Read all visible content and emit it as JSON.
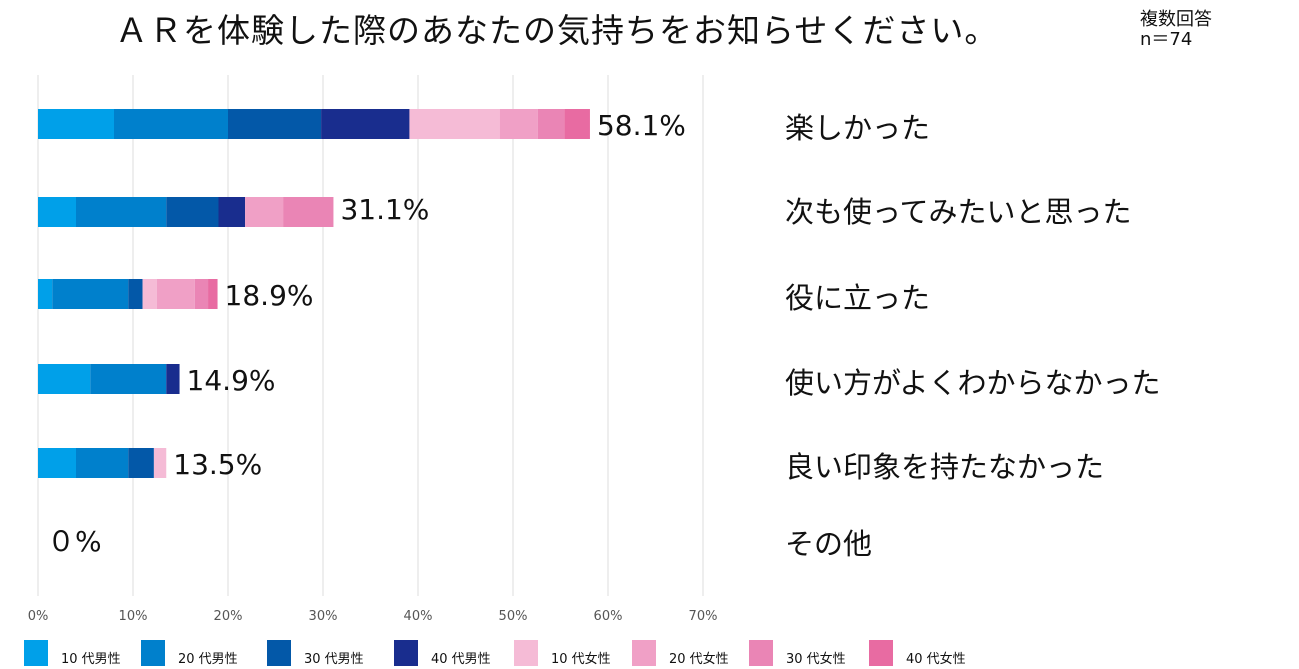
{
  "title": "ＡＲを体験した際のあなたの気持ちをお知らせください。",
  "note": {
    "line1": "複数回答",
    "line2": "n＝74"
  },
  "legend": [
    {
      "label": "10 代男性",
      "color": "#00A0E9"
    },
    {
      "label": "20 代男性",
      "color": "#0080CC"
    },
    {
      "label": "30 代男性",
      "color": "#0358A8"
    },
    {
      "label": "40 代男性",
      "color": "#192D8E"
    },
    {
      "label": "10 代女性",
      "color": "#F5BBD6"
    },
    {
      "label": "20 代女性",
      "color": "#F0A0C6"
    },
    {
      "label": "30 代女性",
      "color": "#EA85B5"
    },
    {
      "label": "40 代女性",
      "color": "#E86BA2"
    }
  ],
  "chart_data": {
    "type": "bar",
    "orientation": "horizontal",
    "stacked": true,
    "title": "ＡＲを体験した際のあなたの気持ちをお知らせください。",
    "xlim": [
      0,
      70
    ],
    "xticks": [
      "0%",
      "10%",
      "20%",
      "30%",
      "40%",
      "50%",
      "60%",
      "70%"
    ],
    "grid": true,
    "legend_position": "bottom",
    "categories": [
      "楽しかった",
      "次も使ってみたいと思った",
      "役に立った",
      "使い方がよくわからなかった",
      "良い印象を持たなかった",
      "その他"
    ],
    "totals": [
      "58.1%",
      "31.1%",
      "18.9%",
      "14.9%",
      "13.5%",
      "０%"
    ],
    "series": [
      {
        "name": "10 代男性",
        "color": "#00A0E9",
        "values": [
          8.0,
          4.0,
          1.5,
          5.5,
          4.0,
          0
        ]
      },
      {
        "name": "20 代男性",
        "color": "#0080CC",
        "values": [
          12.0,
          9.5,
          8.0,
          8.0,
          5.5,
          0
        ]
      },
      {
        "name": "30 代男性",
        "color": "#0358A8",
        "values": [
          9.8,
          5.5,
          1.5,
          0,
          2.7,
          0
        ]
      },
      {
        "name": "40 代男性",
        "color": "#192D8E",
        "values": [
          9.3,
          2.8,
          0,
          1.4,
          0,
          0
        ]
      },
      {
        "name": "10 代女性",
        "color": "#F5BBD6",
        "values": [
          9.5,
          0,
          1.5,
          0,
          1.3,
          0
        ]
      },
      {
        "name": "20 代女性",
        "color": "#F0A0C6",
        "values": [
          4.0,
          4.0,
          4.0,
          0,
          0,
          0
        ]
      },
      {
        "name": "30 代女性",
        "color": "#EA85B5",
        "values": [
          2.8,
          5.3,
          1.4,
          0,
          0,
          0
        ]
      },
      {
        "name": "40 代女性",
        "color": "#E86BA2",
        "values": [
          2.7,
          0,
          1.0,
          0,
          0,
          0
        ]
      }
    ]
  }
}
